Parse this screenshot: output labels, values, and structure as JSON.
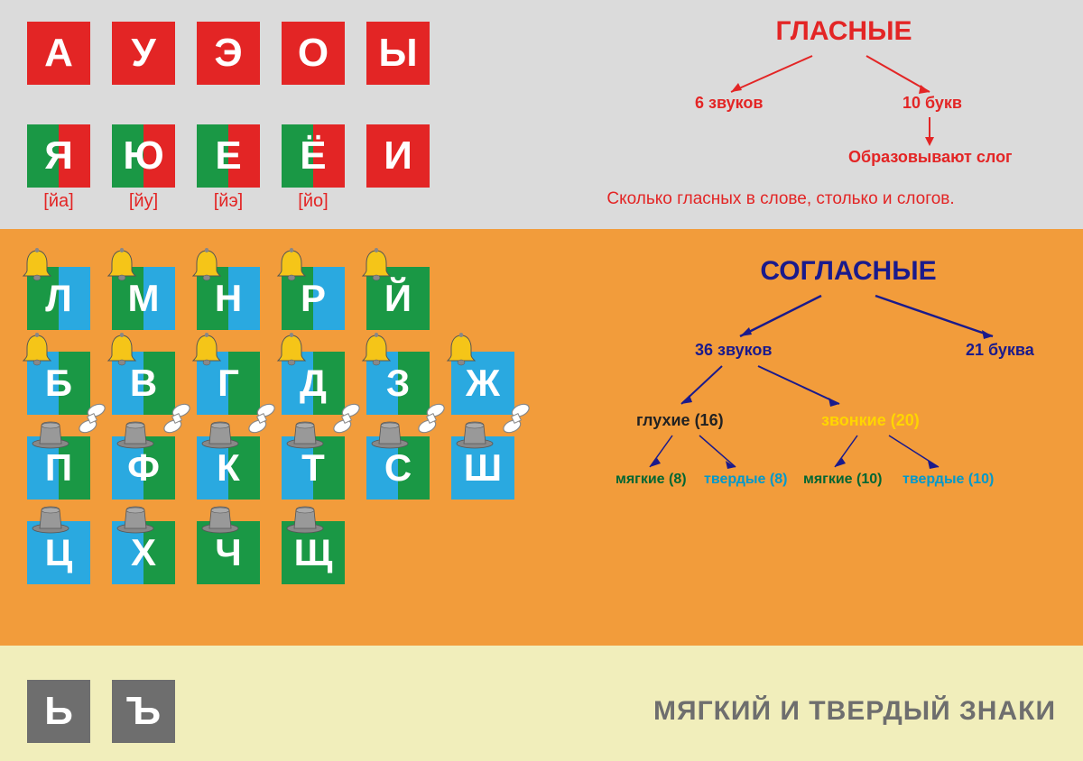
{
  "colors": {
    "red": "#e32525",
    "green": "#1a9845",
    "blue": "#2aa9e0",
    "orange": "#f29c3b",
    "gray_bg": "#dbdbdb",
    "cream": "#f1eebb",
    "gray": "#6e6e6e",
    "navy": "#1a1a8c",
    "yellow": "#ffd500",
    "teal": "#0099cc",
    "dgreen": "#006633"
  },
  "vowels": {
    "title": "ГЛАСНЫЕ",
    "row1": [
      "А",
      "У",
      "Э",
      "О",
      "Ы"
    ],
    "row2": [
      {
        "l": "Я",
        "sub": "[йа]"
      },
      {
        "l": "Ю",
        "sub": "[йу]"
      },
      {
        "l": "Е",
        "sub": "[йэ]"
      },
      {
        "l": "Ё",
        "sub": "[йо]"
      },
      {
        "l": "И",
        "sub": ""
      }
    ],
    "row2_last_style": "red",
    "tree": {
      "left": "6 звуков",
      "right": "10 букв",
      "bottom": "Образовывают слог"
    },
    "note": "Сколько гласных в слове, столько и слогов."
  },
  "consonants": {
    "title": "СОГЛАСНЫЕ",
    "rows": [
      [
        {
          "l": "Л",
          "c": "gb",
          "i": "bell"
        },
        {
          "l": "М",
          "c": "gb",
          "i": "bell"
        },
        {
          "l": "Н",
          "c": "gb",
          "i": "bell"
        },
        {
          "l": "Р",
          "c": "gb",
          "i": "bell"
        },
        {
          "l": "Й",
          "c": "green",
          "i": "bell"
        }
      ],
      [
        {
          "l": "Б",
          "c": "bg",
          "i": "bell",
          "h": 1
        },
        {
          "l": "В",
          "c": "bg",
          "i": "bell",
          "h": 1
        },
        {
          "l": "Г",
          "c": "bg",
          "i": "bell",
          "h": 1
        },
        {
          "l": "Д",
          "c": "bg",
          "i": "bell",
          "h": 1
        },
        {
          "l": "З",
          "c": "bg",
          "i": "bell",
          "h": 1
        },
        {
          "l": "Ж",
          "c": "blue",
          "i": "bell",
          "h": 1
        }
      ],
      [
        {
          "l": "П",
          "c": "bg",
          "i": "hat"
        },
        {
          "l": "Ф",
          "c": "bg",
          "i": "hat"
        },
        {
          "l": "К",
          "c": "bg",
          "i": "hat"
        },
        {
          "l": "Т",
          "c": "bg",
          "i": "hat"
        },
        {
          "l": "С",
          "c": "bg",
          "i": "hat"
        },
        {
          "l": "Ш",
          "c": "blue",
          "i": "hat"
        }
      ],
      [
        {
          "l": "Ц",
          "c": "blue",
          "i": "hat"
        },
        {
          "l": "Х",
          "c": "bg",
          "i": "hat"
        },
        {
          "l": "Ч",
          "c": "green",
          "i": "hat"
        },
        {
          "l": "Щ",
          "c": "green",
          "i": "hat"
        }
      ]
    ],
    "tree": {
      "l1_left": "36 звуков",
      "l1_right": "21 буква",
      "l2_left": "глухие (16)",
      "l2_right": "звонкие (20)",
      "l3_a": "мягкие (8)",
      "l3_b": "твердые (8)",
      "l3_c": "мягкие (10)",
      "l3_d": "твердые (10)"
    }
  },
  "signs": {
    "tiles": [
      "Ь",
      "Ъ"
    ],
    "title": "МЯГКИЙ И ТВЕРДЫЙ ЗНАКИ"
  }
}
